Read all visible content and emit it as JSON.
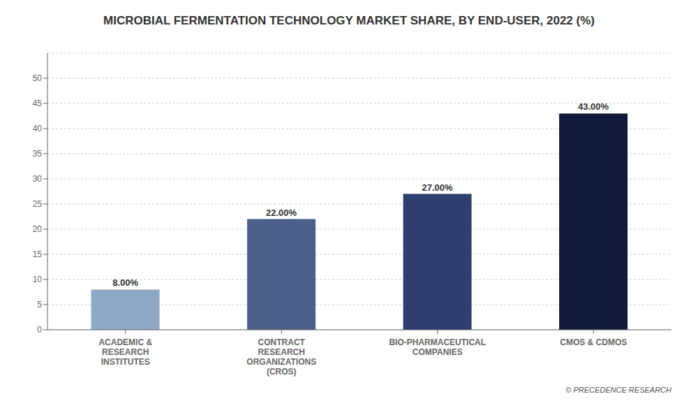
{
  "chart_data": {
    "type": "bar",
    "title": "MICROBIAL FERMENTATION TECHNOLOGY MARKET SHARE, BY END-USER, 2022 (%)",
    "categories": [
      "ACADEMIC &\nRESEARCH\nINSTITUTES",
      "CONTRACT\nRESEARCH\nORGANIZATIONS\n(CROS)",
      "BIO-PHARMACEUTICAL\nCOMPANIES",
      "CMOS & CDMOS"
    ],
    "values": [
      8.0,
      22.0,
      27.0,
      43.0
    ],
    "value_labels": [
      "8.00%",
      "22.00%",
      "27.00%",
      "43.00%"
    ],
    "data_labels": true,
    "colors": [
      "#8fa8c8",
      "#4a5f8a",
      "#2e3f6e",
      "#111a38"
    ],
    "ylim": [
      0,
      55
    ],
    "yticks": [
      0,
      5,
      10,
      15,
      20,
      25,
      30,
      35,
      40,
      45,
      50
    ],
    "grid": true,
    "annotations": [
      "© PRECEDENCE RESEARCH"
    ]
  }
}
